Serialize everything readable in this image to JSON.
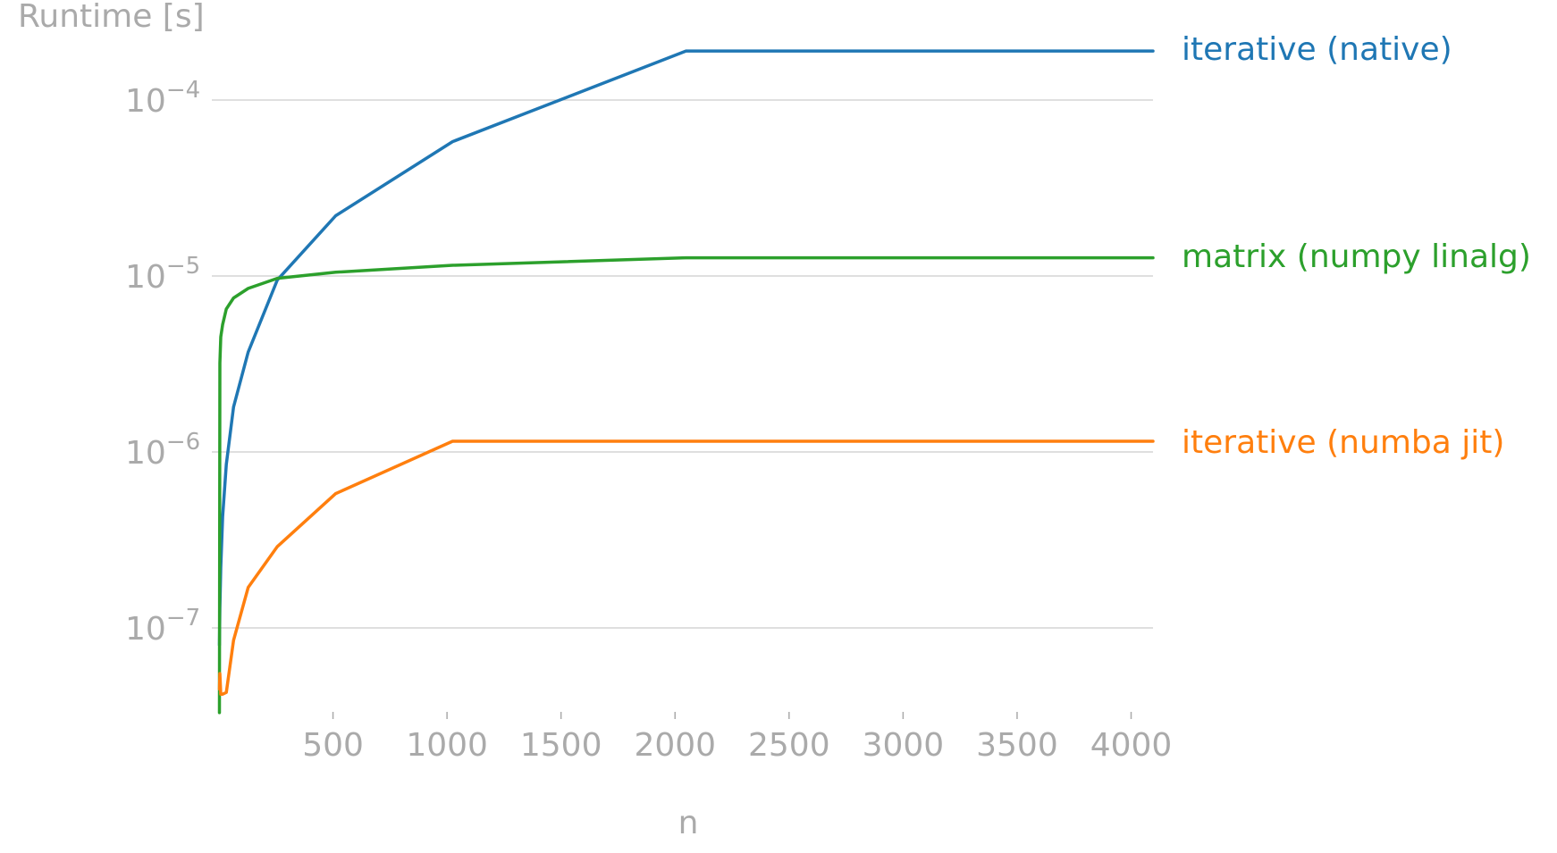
{
  "chart_data": {
    "type": "line",
    "title": "",
    "xlabel": "n",
    "ylabel": "Runtime [s]",
    "yscale": "log",
    "xlim": [
      0,
      4096
    ],
    "ylim": [
      3.3e-08,
      0.00021
    ],
    "x_ticks": [
      500,
      1000,
      1500,
      2000,
      2500,
      3000,
      3500,
      4000
    ],
    "y_ticks": [
      {
        "value": 1e-07,
        "base": "10",
        "exponent": "−7"
      },
      {
        "value": 1e-06,
        "base": "10",
        "exponent": "−6"
      },
      {
        "value": 1e-05,
        "base": "10",
        "exponent": "−5"
      },
      {
        "value": 0.0001,
        "base": "10",
        "exponent": "−4"
      }
    ],
    "grid": "horizontal",
    "legend": "labels at line ends (right)",
    "x": [
      2,
      4,
      8,
      16,
      32,
      64,
      128,
      256,
      512,
      1024,
      2048,
      4096
    ],
    "series": [
      {
        "name": "iterative (native)",
        "color": "#1f77b4",
        "values": [
          8e-08,
          1.3e-07,
          2.2e-07,
          4.3e-07,
          8.5e-07,
          1.8e-06,
          3.7e-06,
          9.5e-06,
          2.2e-05,
          5.8e-05,
          0.00019,
          0.00019
        ]
      },
      {
        "name": "matrix (numpy linalg)",
        "color": "#2ca02c",
        "values": [
          3.3e-08,
          3.2e-06,
          4.5e-06,
          5.3e-06,
          6.5e-06,
          7.5e-06,
          8.5e-06,
          9.7e-06,
          1.05e-05,
          1.15e-05,
          1.27e-05,
          1.27e-05
        ]
      },
      {
        "name": "iterative (numba jit)",
        "color": "#ff7f0e",
        "values": [
          4.5e-08,
          5.5e-08,
          4.2e-08,
          4.2e-08,
          4.3e-08,
          8.5e-08,
          1.7e-07,
          2.9e-07,
          5.8e-07,
          1.15e-06,
          1.15e-06,
          1.15e-06
        ]
      }
    ]
  }
}
